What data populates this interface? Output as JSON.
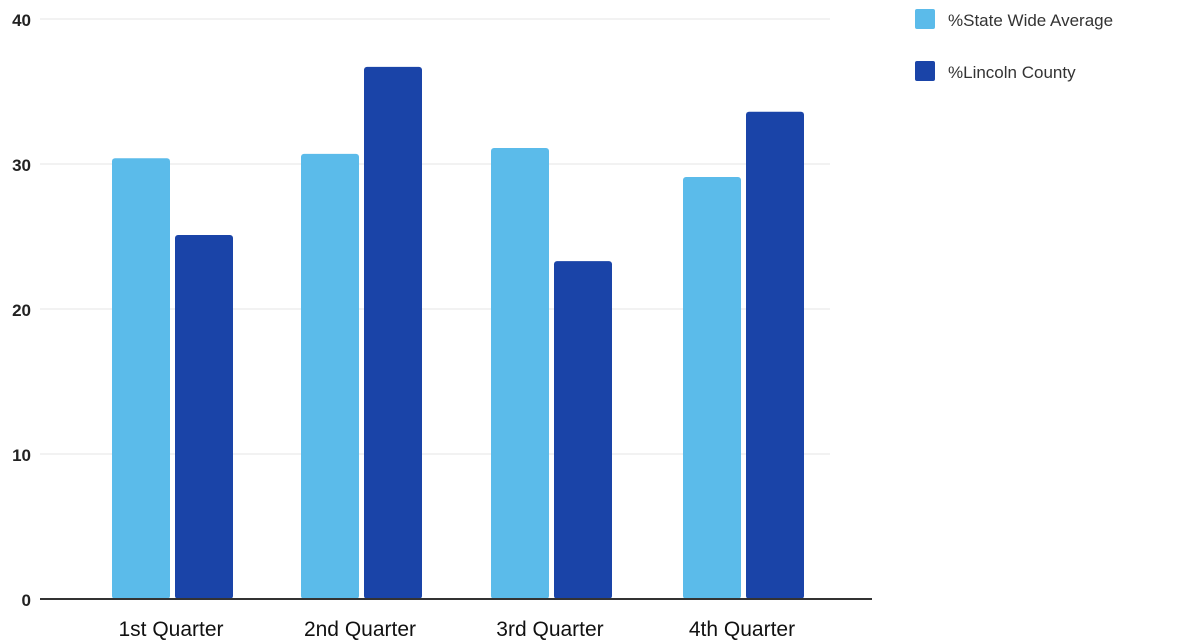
{
  "chart_data": {
    "type": "bar",
    "categories": [
      "1st Quarter",
      "2nd Quarter",
      "3rd Quarter",
      "4th Quarter"
    ],
    "series": [
      {
        "name": "%State Wide Average",
        "values": [
          30.4,
          30.7,
          31.1,
          29.1
        ],
        "color": "#5bbbea"
      },
      {
        "name": "%Lincoln County",
        "values": [
          25.1,
          36.7,
          23.3,
          33.6
        ],
        "color": "#1a44a8"
      }
    ],
    "y_ticks": [
      "0",
      "10",
      "20",
      "30",
      "40"
    ],
    "ylim": [
      0,
      40
    ],
    "grid": true,
    "legend_position": "top-right"
  }
}
